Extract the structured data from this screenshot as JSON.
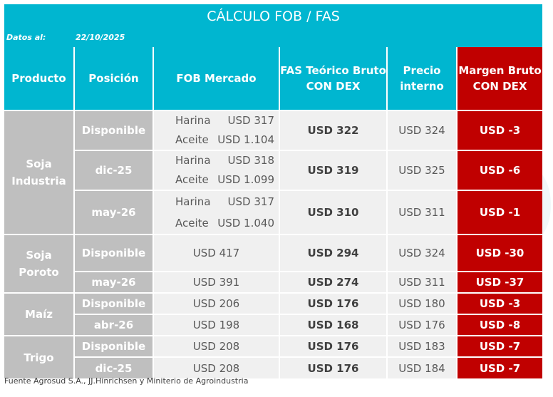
{
  "title": "CÁLCULO FOB / FAS",
  "date": {
    "label": "Datos al:",
    "value": "22/10/2025"
  },
  "headers": {
    "producto": "Producto",
    "posicion": "Posición",
    "fob": "FOB Mercado",
    "fas_l1": "FAS Teórico Bruto",
    "fas_l2": "CON DEX",
    "pi_l1": "Precio",
    "pi_l2": "interno",
    "mg_l1": "Margen Bruto",
    "mg_l2": "CON DEX"
  },
  "products": {
    "soja_ind": {
      "l1": "Soja",
      "l2": "Industria"
    },
    "soja_por": {
      "l1": "Soja",
      "l2": "Poroto"
    },
    "maiz": "Maíz",
    "trigo": "Trigo"
  },
  "rows": [
    {
      "pos": "Disponible",
      "harina_label": "Harina",
      "harina": "USD 317",
      "aceite_label": "Aceite",
      "aceite": "USD 1.104",
      "fas": "USD 322",
      "pi": "USD 324",
      "mg": "USD -3"
    },
    {
      "pos": "dic-25",
      "harina_label": "Harina",
      "harina": "USD 318",
      "aceite_label": "Aceite",
      "aceite": "USD 1.099",
      "fas": "USD 319",
      "pi": "USD 325",
      "mg": "USD -6"
    },
    {
      "pos": "may-26",
      "harina_label": "Harina",
      "harina": "USD 317",
      "aceite_label": "Aceite",
      "aceite": "USD 1.040",
      "fas": "USD 310",
      "pi": "USD 311",
      "mg": "USD -1"
    },
    {
      "pos": "Disponible",
      "fob": "USD 417",
      "fas": "USD 294",
      "pi": "USD 324",
      "mg": "USD -30"
    },
    {
      "pos": "may-26",
      "fob": "USD 391",
      "fas": "USD 274",
      "pi": "USD 311",
      "mg": "USD -37"
    },
    {
      "pos": "Disponible",
      "fob": "USD 206",
      "fas": "USD 176",
      "pi": "USD 180",
      "mg": "USD -3"
    },
    {
      "pos": "abr-26",
      "fob": "USD 198",
      "fas": "USD 168",
      "pi": "USD 176",
      "mg": "USD -8"
    },
    {
      "pos": "Disponible",
      "fob": "USD 208",
      "fas": "USD 176",
      "pi": "USD 183",
      "mg": "USD -7"
    },
    {
      "pos": "dic-25",
      "fob": "USD 208",
      "fas": "USD 176",
      "pi": "USD 184",
      "mg": "USD -7"
    }
  ],
  "footer": "Fuente Agrosud S.A., JJ.Hinrichsen y Miniterio de Agroindustria"
}
